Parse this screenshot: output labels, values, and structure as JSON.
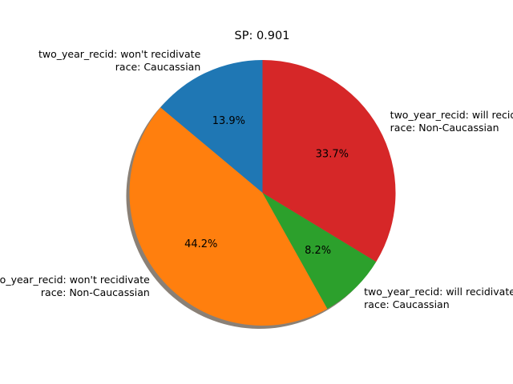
{
  "chart_data": {
    "type": "pie",
    "title": "SP: 0.901",
    "slices": [
      {
        "label_lines": [
          "two_year_recid: won't recidivate",
          "race: Caucassian"
        ],
        "pct_label": "13.9%",
        "value": 13.9,
        "color": "#1f77b4"
      },
      {
        "label_lines": [
          "two_year_recid: won't recidivate",
          "race: Non-Caucassian"
        ],
        "pct_label": "44.2%",
        "value": 44.2,
        "color": "#ff7f0e"
      },
      {
        "label_lines": [
          "two_year_recid: will recidivate",
          "race: Caucassian"
        ],
        "pct_label": "8.2%",
        "value": 8.2,
        "color": "#2ca02c"
      },
      {
        "label_lines": [
          "two_year_recid: will recidivate",
          "race: Non-Caucassian"
        ],
        "pct_label": "33.7%",
        "value": 33.7,
        "color": "#d62728"
      }
    ],
    "start_angle_deg": 90,
    "direction": "counterclockwise",
    "shadow": true
  }
}
